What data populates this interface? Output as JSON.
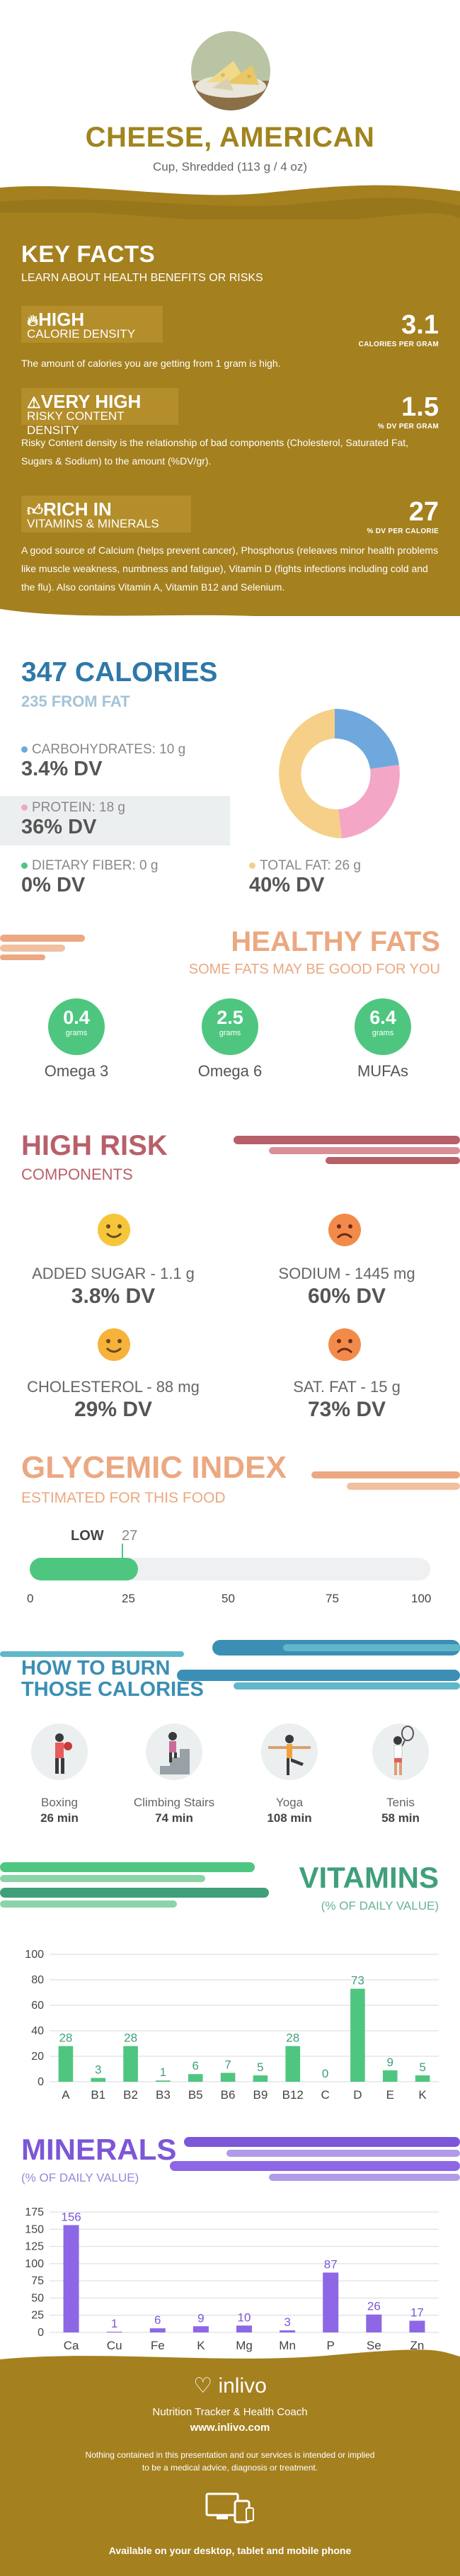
{
  "header": {
    "title": "CHEESE, AMERICAN",
    "serving": "Cup, Shredded (113 g / 4 oz)"
  },
  "key_facts": {
    "title": "KEY FACTS",
    "subtitle": "LEARN ABOUT HEALTH BENEFITS OR RISKS",
    "items": [
      {
        "level": "HIGH",
        "name": "CALORIE DENSITY",
        "value": "3.1",
        "unit": "CALORIES PER GRAM",
        "icon": "flame-icon",
        "description": "The amount of calories you are getting from 1 gram is high."
      },
      {
        "level": "VERY HIGH",
        "name": "RISKY CONTENT DENSITY",
        "value": "1.5",
        "unit": "% DV PER GRAM",
        "icon": "warning-icon",
        "description": "Risky Content density is the relationship of bad components (Cholesterol, Saturated Fat, Sugars & Sodium) to the amount (%DV/gr)."
      },
      {
        "level": "RICH IN",
        "name": "VITAMINS & MINERALS",
        "value": "27",
        "unit": "% DV PER CALORIE",
        "icon": "thumbs-up-icon",
        "description": "A good source of Calcium (helps prevent cancer), Phosphorus (releaves minor health problems like muscle weakness, numbness and fatigue), Vitamin D (fights infections including cold and the flu). Also contains Vitamin A, Vitamin B12 and Selenium."
      }
    ]
  },
  "calories": {
    "total": "347 CALORIES",
    "from_fat": "235 FROM FAT",
    "nutrients": [
      {
        "label": "CARBOHYDRATES: 10 g",
        "dv": "3.4% DV",
        "color": "#6fa8dc"
      },
      {
        "label": "PROTEIN: 18 g",
        "dv": "36% DV",
        "color": "#f4a6c6"
      },
      {
        "label": "DIETARY FIBER: 0 g",
        "dv": "0% DV",
        "color": "#4fc680"
      },
      {
        "label": "TOTAL FAT: 26 g",
        "dv": "40% DV",
        "color": "#f6d089"
      }
    ]
  },
  "healthy_fats": {
    "title": "HEALTHY FATS",
    "subtitle": "SOME FATS MAY BE GOOD FOR YOU",
    "unit": "grams",
    "items": [
      {
        "value": "0.4",
        "name": "Omega 3"
      },
      {
        "value": "2.5",
        "name": "Omega 6"
      },
      {
        "value": "6.4",
        "name": "MUFAs"
      }
    ]
  },
  "high_risk": {
    "title": "HIGH RISK",
    "subtitle": "COMPONENTS",
    "items": [
      {
        "label": "ADDED SUGAR - 1.1 g",
        "dv": "3.8% DV",
        "mood": "happy",
        "color": "#f6c63a"
      },
      {
        "label": "SODIUM - 1445 mg",
        "dv": "60% DV",
        "mood": "sad",
        "color": "#f28b4a"
      },
      {
        "label": "CHOLESTEROL - 88 mg",
        "dv": "29% DV",
        "mood": "happy",
        "color": "#f6b23a"
      },
      {
        "label": "SAT. FAT - 15 g",
        "dv": "73% DV",
        "mood": "sad",
        "color": "#f28b4a"
      }
    ]
  },
  "glycemic": {
    "title": "GLYCEMIC INDEX",
    "subtitle": "ESTIMATED FOR THIS FOOD",
    "level": "LOW",
    "value": 27,
    "value_text": "27",
    "ticks": [
      "0",
      "25",
      "50",
      "75",
      "100"
    ]
  },
  "burn": {
    "title1": "HOW TO BURN",
    "title2": "THOSE CALORIES",
    "activities": [
      {
        "name": "Boxing",
        "time": "26 min",
        "icon": "boxing-icon"
      },
      {
        "name": "Climbing Stairs",
        "time": "74 min",
        "icon": "stairs-icon"
      },
      {
        "name": "Yoga",
        "time": "108 min",
        "icon": "yoga-icon"
      },
      {
        "name": "Tenis",
        "time": "58 min",
        "icon": "tennis-icon"
      }
    ]
  },
  "chart_data": [
    {
      "type": "bar",
      "title": "VITAMINS",
      "subtitle": "(% OF DAILY VALUE)",
      "categories": [
        "A",
        "B1",
        "B2",
        "B3",
        "B5",
        "B6",
        "B9",
        "B12",
        "C",
        "D",
        "E",
        "K"
      ],
      "values": [
        28,
        3,
        28,
        1,
        6,
        7,
        5,
        28,
        0,
        73,
        9,
        5
      ],
      "ylim": [
        0,
        100
      ],
      "yticks": [
        0,
        20,
        40,
        60,
        80,
        100
      ],
      "grid": true,
      "color": "#4fc680",
      "label_color": "#3fa07a"
    },
    {
      "type": "bar",
      "title": "MINERALS",
      "subtitle": "(% OF DAILY VALUE)",
      "categories": [
        "Ca",
        "Cu",
        "Fe",
        "K",
        "Mg",
        "Mn",
        "P",
        "Se",
        "Zn"
      ],
      "values": [
        156,
        1,
        6,
        9,
        10,
        3,
        87,
        26,
        17
      ],
      "ylim": [
        0,
        175
      ],
      "yticks": [
        0,
        25,
        50,
        75,
        100,
        125,
        150,
        175
      ],
      "grid": true,
      "color": "#8d67e6",
      "label_color": "#7c57d8"
    }
  ],
  "footer": {
    "brand": "inlivo",
    "tagline": "Nutrition Tracker & Health Coach",
    "url": "www.inlivo.com",
    "disclaimer1": "Nothing contained in this presentation and our services is intended or implied",
    "disclaimer2": "to be a medical advice, diagnosis or treatment.",
    "available": "Available on your desktop, tablet and mobile phone"
  }
}
